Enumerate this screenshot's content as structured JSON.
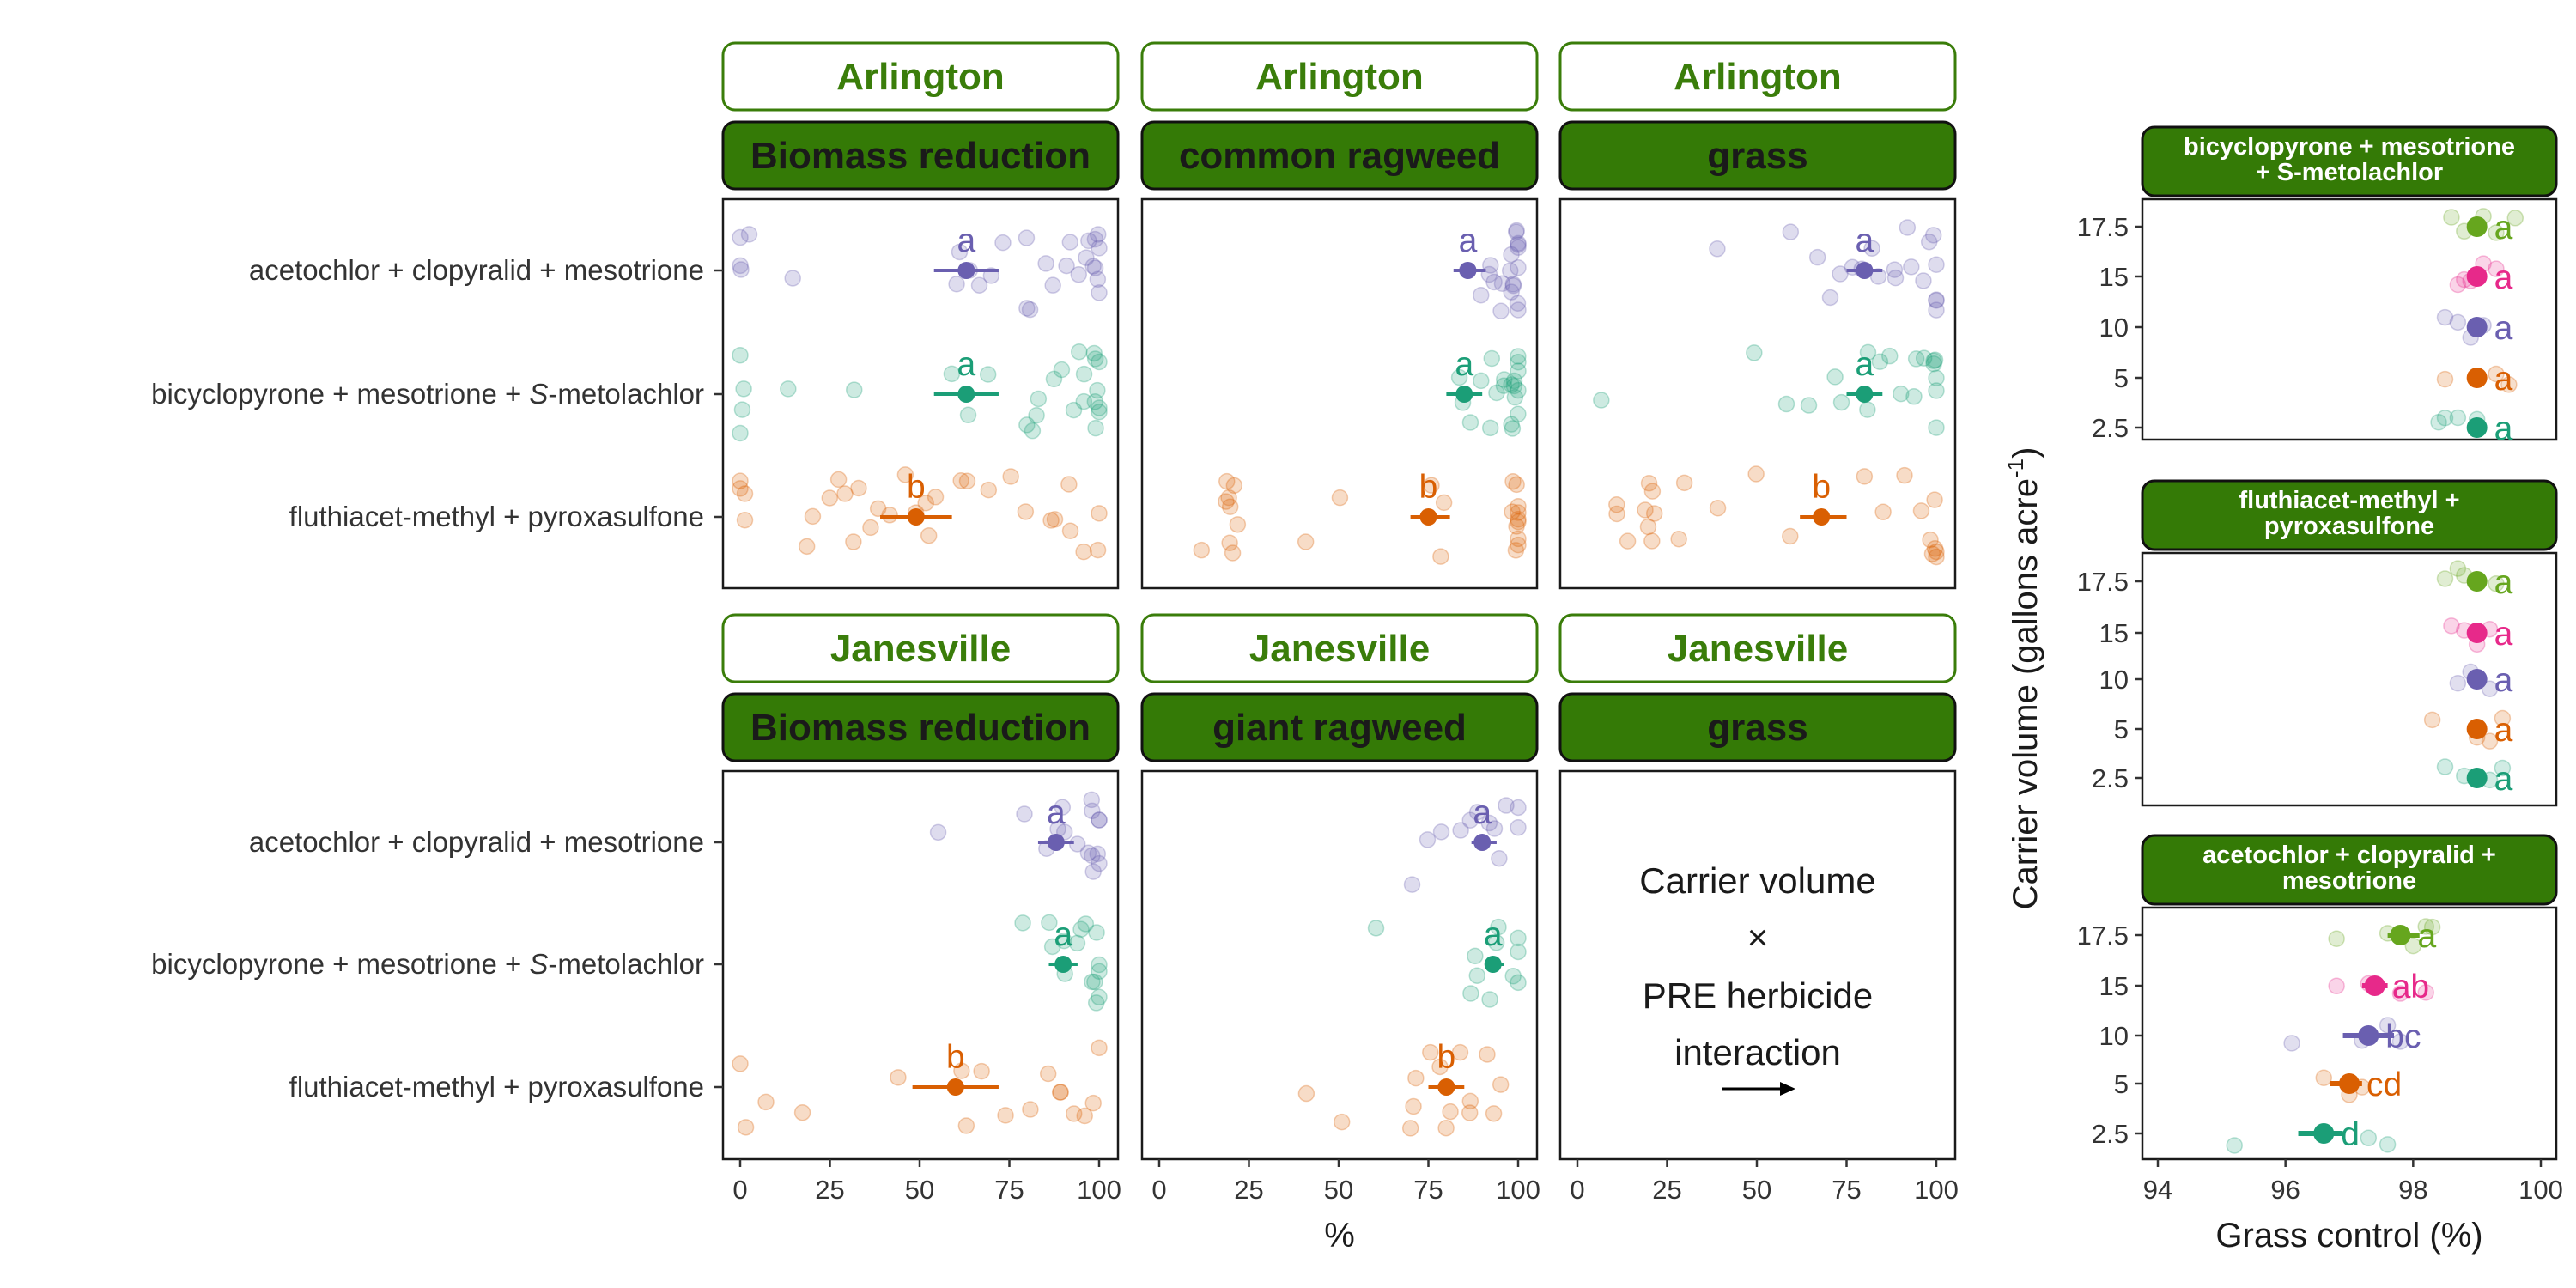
{
  "colors": {
    "accent_green": "#3a7d0a",
    "strip_dark": "#347a06",
    "purple": "#6a5fb0",
    "teal": "#1b9e77",
    "orange": "#d95f02",
    "magenta": "#e7298a",
    "lime": "#66a61e"
  },
  "chart_data": [
    {
      "type": "scatter",
      "panel": "Arlington / Biomass reduction",
      "strip_top": "Arlington",
      "strip_bottom": "Biomass reduction",
      "categories": [
        "acetochlor + clopyralid + mesotrione",
        "bicyclopyrone + mesotrione + S-metolachlor",
        "fluthiacet-methyl + pyroxasulfone"
      ],
      "xlim": [
        0,
        100
      ],
      "xticks": [
        "0",
        "25",
        "50",
        "75",
        "100"
      ],
      "series": [
        {
          "category": "acetochlor + clopyralid + mesotrione",
          "mean": 63,
          "lo": 54,
          "hi": 72,
          "letter": "a",
          "points": [
            0,
            0,
            0,
            1,
            15,
            60,
            62,
            65,
            68,
            70,
            75,
            78,
            80,
            82,
            85,
            88,
            90,
            92,
            95,
            96,
            97,
            98,
            99,
            100,
            100,
            100,
            100,
            100
          ]
        },
        {
          "category": "bicyclopyrone + mesotrione + S-metolachlor",
          "mean": 63,
          "lo": 54,
          "hi": 72,
          "letter": "a",
          "points": [
            0,
            0,
            0,
            1,
            12,
            32,
            60,
            65,
            68,
            78,
            80,
            82,
            85,
            88,
            90,
            92,
            94,
            95,
            96,
            97,
            98,
            99,
            100,
            100,
            100,
            100,
            100
          ]
        },
        {
          "category": "fluthiacet-methyl + pyroxasulfone",
          "mean": 49,
          "lo": 39,
          "hi": 59,
          "letter": "b",
          "points": [
            0,
            0,
            0,
            0,
            20,
            22,
            25,
            28,
            30,
            33,
            35,
            38,
            40,
            42,
            45,
            48,
            50,
            52,
            55,
            60,
            65,
            70,
            75,
            80,
            85,
            88,
            90,
            92,
            95,
            100,
            100
          ]
        }
      ]
    },
    {
      "type": "scatter",
      "panel": "Arlington / common ragweed",
      "strip_top": "Arlington",
      "strip_bottom": "common ragweed",
      "xlim": [
        0,
        100
      ],
      "xticks": [
        "0",
        "25",
        "50",
        "75",
        "100"
      ],
      "series": [
        {
          "category": "acetochlor + clopyralid + mesotrione",
          "mean": 86,
          "lo": 82,
          "hi": 91,
          "letter": "a",
          "points": [
            85,
            88,
            90,
            92,
            94,
            95,
            96,
            97,
            98,
            99,
            100,
            100,
            100,
            100,
            100,
            100,
            100,
            100,
            100,
            100
          ]
        },
        {
          "category": "bicyclopyrone + mesotrione + S-metolachlor",
          "mean": 85,
          "lo": 80,
          "hi": 90,
          "letter": "a",
          "points": [
            82,
            85,
            88,
            90,
            92,
            94,
            95,
            96,
            98,
            99,
            100,
            100,
            100,
            100,
            100,
            100,
            100,
            100,
            100,
            100
          ]
        },
        {
          "category": "fluthiacet-methyl + pyroxasulfone",
          "mean": 75,
          "lo": 70,
          "hi": 81,
          "letter": "b",
          "points": [
            10,
            18,
            20,
            20,
            20,
            20,
            20,
            20,
            20,
            40,
            50,
            75,
            78,
            80,
            100,
            100,
            100,
            100,
            100,
            100,
            100,
            100,
            100,
            100,
            100
          ]
        }
      ]
    },
    {
      "type": "scatter",
      "panel": "Arlington / grass",
      "strip_top": "Arlington",
      "strip_bottom": "grass",
      "xlim": [
        0,
        100
      ],
      "xticks": [
        "0",
        "25",
        "50",
        "75",
        "100"
      ],
      "series": [
        {
          "category": "acetochlor + clopyralid + mesotrione",
          "mean": 80,
          "lo": 75,
          "hi": 85,
          "letter": "a",
          "points": [
            40,
            60,
            65,
            70,
            75,
            78,
            80,
            82,
            85,
            88,
            90,
            92,
            95,
            98,
            100,
            100,
            100,
            100,
            100,
            100
          ]
        },
        {
          "category": "bicyclopyrone + mesotrione + S-metolachlor",
          "mean": 80,
          "lo": 75,
          "hi": 85,
          "letter": "a",
          "points": [
            5,
            50,
            60,
            65,
            70,
            75,
            80,
            82,
            85,
            88,
            90,
            92,
            95,
            98,
            100,
            100,
            100,
            100,
            100,
            100
          ]
        },
        {
          "category": "fluthiacet-methyl + pyroxasulfone",
          "mean": 68,
          "lo": 62,
          "hi": 75,
          "letter": "b",
          "points": [
            10,
            12,
            15,
            20,
            20,
            20,
            20,
            20,
            20,
            30,
            30,
            40,
            50,
            60,
            80,
            85,
            90,
            95,
            100,
            100,
            100,
            100,
            100,
            100
          ]
        }
      ]
    },
    {
      "type": "scatter",
      "panel": "Janesville / Biomass reduction",
      "strip_top": "Janesville",
      "strip_bottom": "Biomass reduction",
      "xlim": [
        0,
        100
      ],
      "xticks": [
        "0",
        "25",
        "50",
        "75",
        "100"
      ],
      "series": [
        {
          "category": "acetochlor + clopyralid + mesotrione",
          "mean": 88,
          "lo": 83,
          "hi": 93,
          "letter": "a",
          "points": [
            54,
            78,
            85,
            88,
            90,
            92,
            95,
            96,
            98,
            99,
            100,
            100,
            100,
            100,
            100,
            100
          ]
        },
        {
          "category": "bicyclopyrone + mesotrione + S-metolachlor",
          "mean": 90,
          "lo": 86,
          "hi": 94,
          "letter": "a",
          "points": [
            80,
            85,
            88,
            90,
            92,
            94,
            95,
            96,
            98,
            100,
            100,
            100,
            100,
            100,
            100
          ]
        },
        {
          "category": "fluthiacet-methyl + pyroxasulfone",
          "mean": 60,
          "lo": 48,
          "hi": 72,
          "letter": "b",
          "points": [
            0,
            0,
            8,
            18,
            45,
            60,
            65,
            68,
            72,
            82,
            85,
            88,
            90,
            92,
            95,
            98,
            100
          ]
        }
      ]
    },
    {
      "type": "scatter",
      "panel": "Janesville / giant ragweed",
      "strip_top": "Janesville",
      "strip_bottom": "giant ragweed",
      "xlim": [
        0,
        100
      ],
      "xticks": [
        "0",
        "25",
        "50",
        "75",
        "100"
      ],
      "series": [
        {
          "category": "acetochlor + clopyralid + mesotrione",
          "mean": 90,
          "lo": 87,
          "hi": 94,
          "letter": "a",
          "points": [
            72,
            75,
            80,
            85,
            88,
            90,
            92,
            95,
            96,
            98,
            100,
            100
          ]
        },
        {
          "category": "bicyclopyrone + mesotrione + S-metolachlor",
          "mean": 93,
          "lo": 91,
          "hi": 96,
          "letter": "a",
          "points": [
            60,
            85,
            88,
            90,
            92,
            94,
            96,
            98,
            100,
            100,
            100
          ]
        },
        {
          "category": "fluthiacet-methyl + pyroxasulfone",
          "mean": 80,
          "lo": 75,
          "hi": 85,
          "letter": "b",
          "points": [
            40,
            50,
            70,
            70,
            72,
            75,
            78,
            80,
            82,
            85,
            85,
            88,
            90,
            92,
            95
          ]
        }
      ]
    },
    {
      "type": "scatter",
      "panel": "Janesville / grass",
      "strip_top": "Janesville",
      "strip_bottom": "grass",
      "xlim": [
        0,
        100
      ],
      "xticks": [
        "0",
        "25",
        "50",
        "75",
        "100"
      ],
      "note_lines": [
        "Carrier volume",
        "×",
        "PRE herbicide",
        "interaction"
      ]
    },
    {
      "type": "scatter",
      "panel": "bicyclopyrone + mesotrione + S-metolachlor",
      "strip_lines": [
        "bicyclopyrone + mesotrione",
        "+ S-metolachlor"
      ],
      "ylabel": "Carrier volume (gallons acre-1)",
      "categories": [
        "17.5",
        "15",
        "10",
        "5",
        "2.5"
      ],
      "xlim": [
        94,
        100
      ],
      "xticks": [
        "94",
        "96",
        "98",
        "100"
      ],
      "series": [
        {
          "category": "17.5",
          "mean": 99.0,
          "lo": 98.9,
          "hi": 99.1,
          "letter": "a",
          "points": [
            98.8,
            99.1,
            99.3,
            99.6,
            98.6
          ]
        },
        {
          "category": "15",
          "mean": 99.0,
          "lo": 98.9,
          "hi": 99.1,
          "letter": "a",
          "points": [
            98.7,
            98.9,
            99.1,
            99.3,
            98.8
          ]
        },
        {
          "category": "10",
          "mean": 99.0,
          "lo": 98.9,
          "hi": 99.1,
          "letter": "a",
          "points": [
            98.5,
            98.7,
            99.1,
            98.9
          ]
        },
        {
          "category": "5",
          "mean": 99.0,
          "lo": 98.9,
          "hi": 99.1,
          "letter": "a",
          "points": [
            98.5,
            99.0,
            99.5,
            99.3
          ]
        },
        {
          "category": "2.5",
          "mean": 99.0,
          "lo": 98.9,
          "hi": 99.1,
          "letter": "a",
          "points": [
            98.4,
            98.5,
            98.7,
            99.0
          ]
        }
      ]
    },
    {
      "type": "scatter",
      "panel": "fluthiacet-methyl + pyroxasulfone",
      "strip_lines": [
        "fluthiacet-methyl +",
        "pyroxasulfone"
      ],
      "categories": [
        "17.5",
        "15",
        "10",
        "5",
        "2.5"
      ],
      "xlim": [
        94,
        100
      ],
      "xticks": [
        "94",
        "96",
        "98",
        "100"
      ],
      "series": [
        {
          "category": "17.5",
          "mean": 99.0,
          "lo": 98.9,
          "hi": 99.1,
          "letter": "a",
          "points": [
            98.5,
            98.8,
            99.3,
            98.7
          ]
        },
        {
          "category": "15",
          "mean": 99.0,
          "lo": 98.9,
          "hi": 99.1,
          "letter": "a",
          "points": [
            98.6,
            99.0,
            99.2,
            98.8
          ]
        },
        {
          "category": "10",
          "mean": 99.0,
          "lo": 98.9,
          "hi": 99.1,
          "letter": "a",
          "points": [
            98.7,
            99.2,
            98.9
          ]
        },
        {
          "category": "5",
          "mean": 99.0,
          "lo": 98.9,
          "hi": 99.1,
          "letter": "a",
          "points": [
            98.3,
            99.2,
            99.4,
            99.0
          ]
        },
        {
          "category": "2.5",
          "mean": 99.0,
          "lo": 98.9,
          "hi": 99.1,
          "letter": "a",
          "points": [
            98.5,
            98.8,
            99.4,
            99.2
          ]
        }
      ]
    },
    {
      "type": "scatter",
      "panel": "acetochlor + clopyralid + mesotrione",
      "strip_lines": [
        "acetochlor + clopyralid +",
        "mesotrione"
      ],
      "xlabel": "Grass control (%)",
      "categories": [
        "17.5",
        "15",
        "10",
        "5",
        "2.5"
      ],
      "xlim": [
        94,
        100
      ],
      "xticks": [
        "94",
        "96",
        "98",
        "100"
      ],
      "series": [
        {
          "category": "17.5",
          "mean": 97.8,
          "lo": 97.6,
          "hi": 98.1,
          "letter": "a",
          "points": [
            96.8,
            97.6,
            98.0,
            98.2,
            98.3
          ]
        },
        {
          "category": "15",
          "mean": 97.4,
          "lo": 97.2,
          "hi": 97.6,
          "letter": "ab",
          "points": [
            96.8,
            97.3,
            97.8,
            98.2
          ]
        },
        {
          "category": "10",
          "mean": 97.3,
          "lo": 96.9,
          "hi": 97.7,
          "letter": "bc",
          "points": [
            96.1,
            97.2,
            97.6,
            97.8
          ]
        },
        {
          "category": "5",
          "mean": 97.0,
          "lo": 96.7,
          "hi": 97.2,
          "letter": "cd",
          "points": [
            96.6,
            97.0,
            97.2
          ]
        },
        {
          "category": "2.5",
          "mean": 96.6,
          "lo": 96.2,
          "hi": 96.9,
          "letter": "d",
          "points": [
            95.2,
            97.3,
            97.6
          ]
        }
      ]
    }
  ],
  "labels": {
    "xaxis_left": "%",
    "cat1": "acetochlor + clopyralid + mesotrione",
    "cat2_prefix": "bicyclopyrone + mesotrione + ",
    "cat2_italic": "S",
    "cat2_suffix": "-metolachlor",
    "cat3": "fluthiacet-methyl + pyroxasulfone",
    "ylabel_right_main": "Carrier volume (gallons acre",
    "ylabel_right_sup": "-1",
    "ylabel_right_close": ")"
  }
}
